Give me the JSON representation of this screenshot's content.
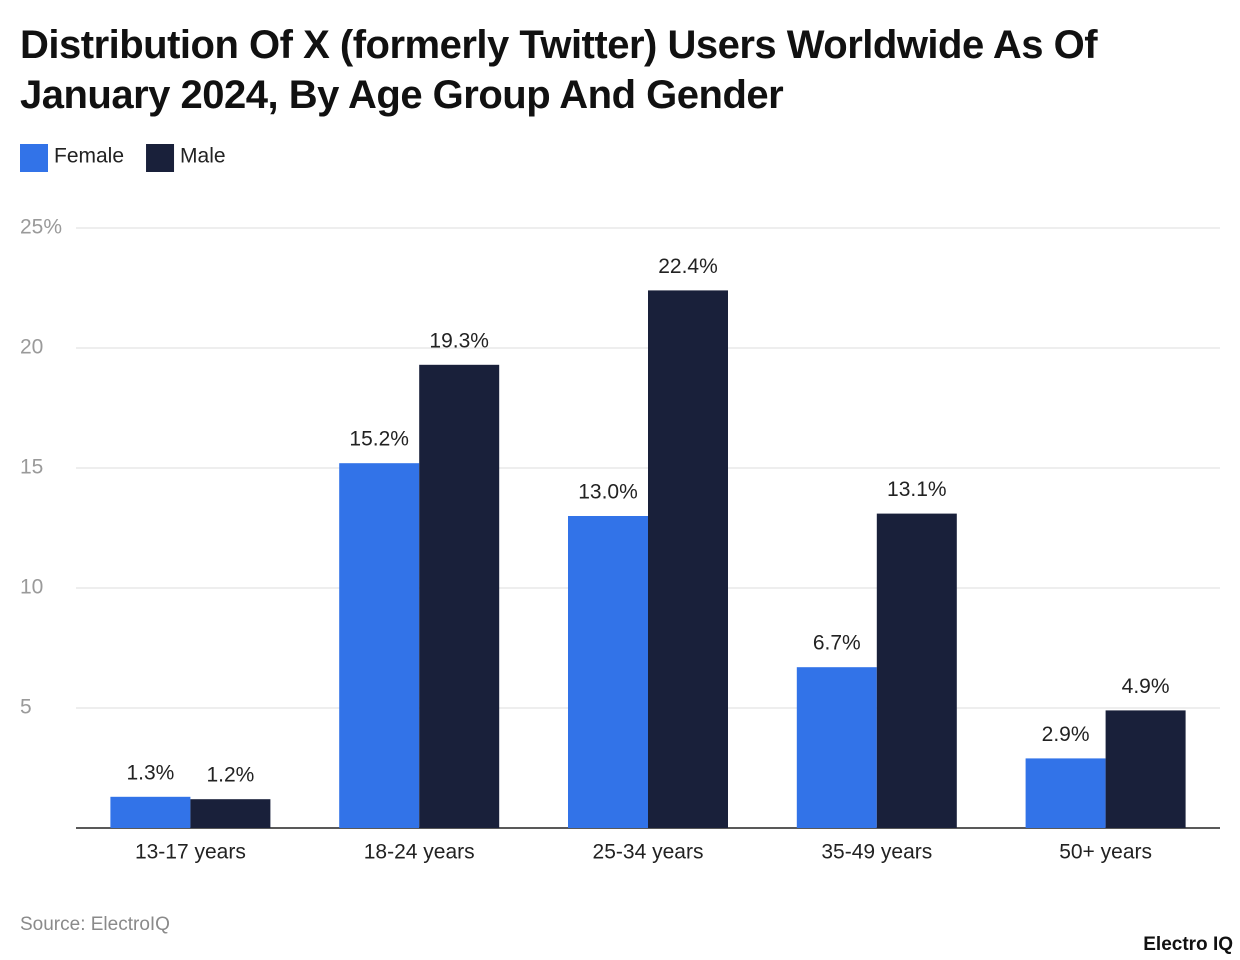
{
  "chart_data": {
    "type": "bar",
    "title": "Distribution Of X (formerly Twitter) Users Worldwide As Of January 2024, By Age Group And Gender",
    "categories": [
      "13-17 years",
      "18-24 years",
      "25-34 years",
      "35-49 years",
      "50+ years"
    ],
    "series": [
      {
        "name": "Female",
        "color": "#3273e8",
        "values": [
          1.3,
          15.2,
          13.0,
          6.7,
          2.9
        ],
        "value_labels": [
          "1.3%",
          "15.2%",
          "13.0%",
          "6.7%",
          "2.9%"
        ]
      },
      {
        "name": "Male",
        "color": "#19203a",
        "values": [
          1.2,
          19.3,
          22.4,
          13.1,
          4.9
        ],
        "value_labels": [
          "1.2%",
          "19.3%",
          "22.4%",
          "13.1%",
          "4.9%"
        ]
      }
    ],
    "ylim": [
      0,
      25
    ],
    "yticks": [
      {
        "value": 25,
        "label": "25%"
      },
      20,
      15,
      10,
      5
    ],
    "grid": true,
    "source": "Source: ElectroIQ",
    "logo": "Electro IQ"
  }
}
